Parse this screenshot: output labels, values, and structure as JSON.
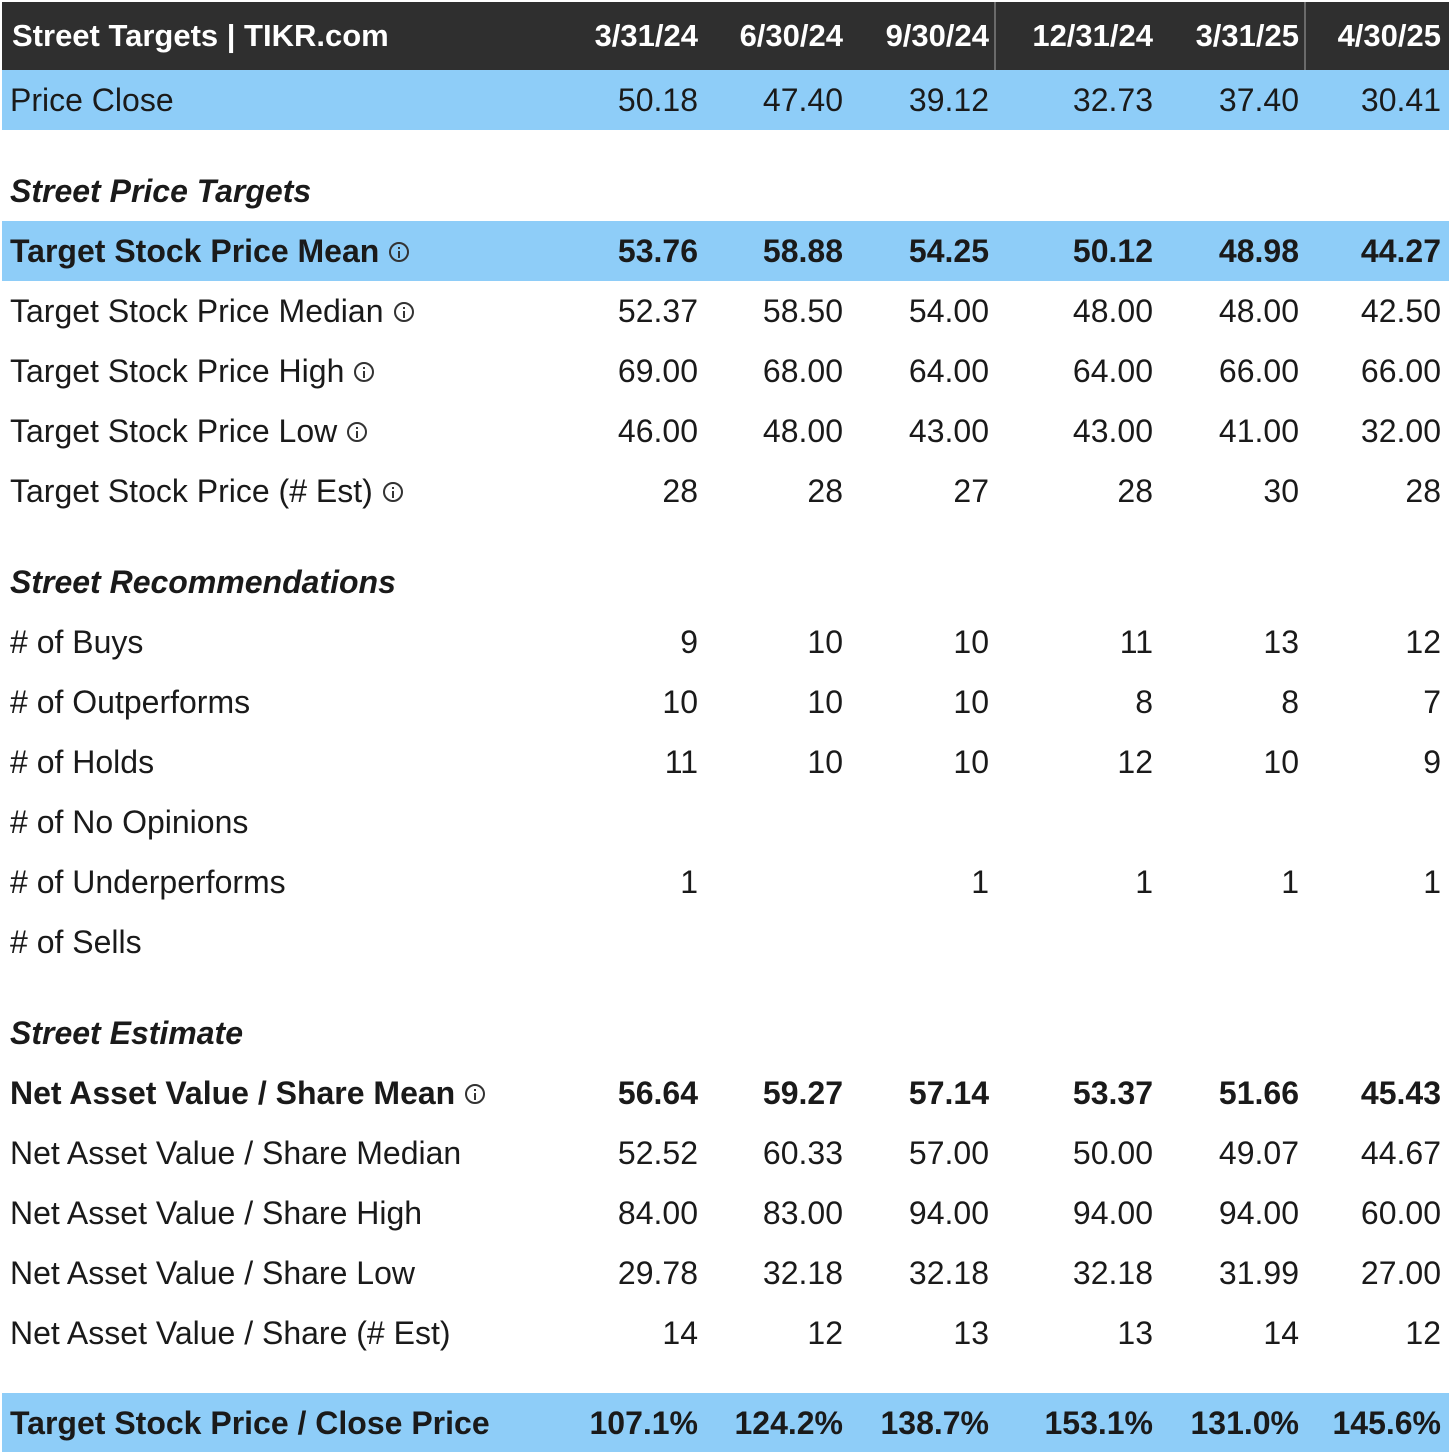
{
  "header": {
    "title": "Street Targets | TIKR.com",
    "dates": [
      "3/31/24",
      "6/30/24",
      "9/30/24",
      "12/31/24",
      "3/31/25",
      "4/30/25"
    ]
  },
  "price_close": {
    "label": "Price Close",
    "values": [
      "50.18",
      "47.40",
      "39.12",
      "32.73",
      "37.40",
      "30.41"
    ]
  },
  "street_price_targets": {
    "title": "Street Price Targets",
    "rows": [
      {
        "label": "Target Stock Price Mean",
        "values": [
          "53.76",
          "58.88",
          "54.25",
          "50.12",
          "48.98",
          "44.27"
        ]
      },
      {
        "label": "Target Stock Price Median",
        "values": [
          "52.37",
          "58.50",
          "54.00",
          "48.00",
          "48.00",
          "42.50"
        ]
      },
      {
        "label": "Target Stock Price High",
        "values": [
          "69.00",
          "68.00",
          "64.00",
          "64.00",
          "66.00",
          "66.00"
        ]
      },
      {
        "label": "Target Stock Price Low",
        "values": [
          "46.00",
          "48.00",
          "43.00",
          "43.00",
          "41.00",
          "32.00"
        ]
      },
      {
        "label": "Target Stock Price (# Est)",
        "values": [
          "28",
          "28",
          "27",
          "28",
          "30",
          "28"
        ]
      }
    ]
  },
  "street_recommendations": {
    "title": "Street Recommendations",
    "rows": [
      {
        "label": "# of Buys",
        "values": [
          "9",
          "10",
          "10",
          "11",
          "13",
          "12"
        ]
      },
      {
        "label": "# of Outperforms",
        "values": [
          "10",
          "10",
          "10",
          "8",
          "8",
          "7"
        ]
      },
      {
        "label": "# of Holds",
        "values": [
          "11",
          "10",
          "10",
          "12",
          "10",
          "9"
        ]
      },
      {
        "label": "# of No Opinions",
        "values": [
          "",
          "",
          "",
          "",
          "",
          ""
        ]
      },
      {
        "label": "# of Underperforms",
        "values": [
          "1",
          "",
          "1",
          "1",
          "1",
          "1"
        ]
      },
      {
        "label": "# of Sells",
        "values": [
          "",
          "",
          "",
          "",
          "",
          ""
        ]
      }
    ]
  },
  "street_estimate": {
    "title": "Street Estimate",
    "rows": [
      {
        "label": "Net Asset Value / Share Mean",
        "values": [
          "56.64",
          "59.27",
          "57.14",
          "53.37",
          "51.66",
          "45.43"
        ]
      },
      {
        "label": "Net Asset Value / Share Median",
        "values": [
          "52.52",
          "60.33",
          "57.00",
          "50.00",
          "49.07",
          "44.67"
        ]
      },
      {
        "label": "Net Asset Value / Share High",
        "values": [
          "84.00",
          "83.00",
          "94.00",
          "94.00",
          "94.00",
          "60.00"
        ]
      },
      {
        "label": "Net Asset Value / Share Low",
        "values": [
          "29.78",
          "32.18",
          "32.18",
          "32.18",
          "31.99",
          "27.00"
        ]
      },
      {
        "label": "Net Asset Value / Share (# Est)",
        "values": [
          "14",
          "12",
          "13",
          "13",
          "14",
          "12"
        ]
      }
    ]
  },
  "target_to_close": {
    "label": "Target Stock Price / Close Price",
    "values": [
      "107.1%",
      "124.2%",
      "138.7%",
      "153.1%",
      "131.0%",
      "145.6%"
    ]
  },
  "colors": {
    "header_bg": "#2f2f2f",
    "highlight_bg": "#8ecdf8"
  }
}
